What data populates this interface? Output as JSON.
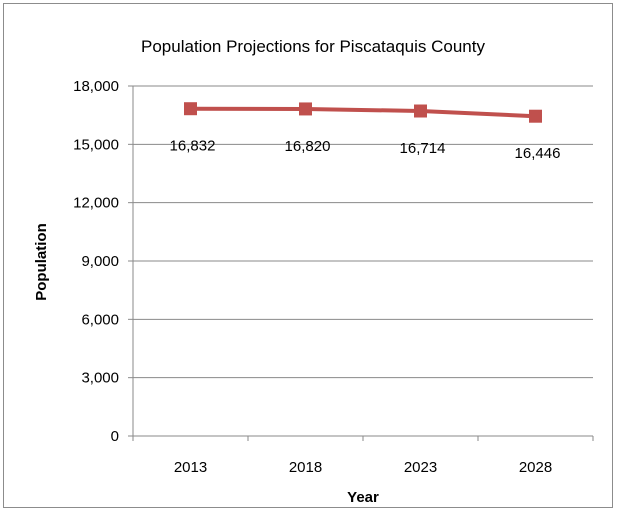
{
  "chart_data": {
    "type": "line",
    "title": "Population Projections for Piscataquis County",
    "xlabel": "Year",
    "ylabel": "Population",
    "categories": [
      "2013",
      "2018",
      "2023",
      "2028"
    ],
    "series": [
      {
        "values": [
          16832,
          16820,
          16714,
          16446
        ],
        "data_labels": [
          "16,832",
          "16,820",
          "16,714",
          "16,446"
        ],
        "color": "#c0504d",
        "marker": "square"
      }
    ],
    "ylim": [
      0,
      18000
    ],
    "y_ticks": [
      0,
      3000,
      6000,
      9000,
      12000,
      15000,
      18000
    ],
    "y_tick_labels": [
      "0",
      "3,000",
      "6,000",
      "9,000",
      "12,000",
      "15,000",
      "18,000"
    ],
    "grid": true,
    "legend": "none"
  }
}
